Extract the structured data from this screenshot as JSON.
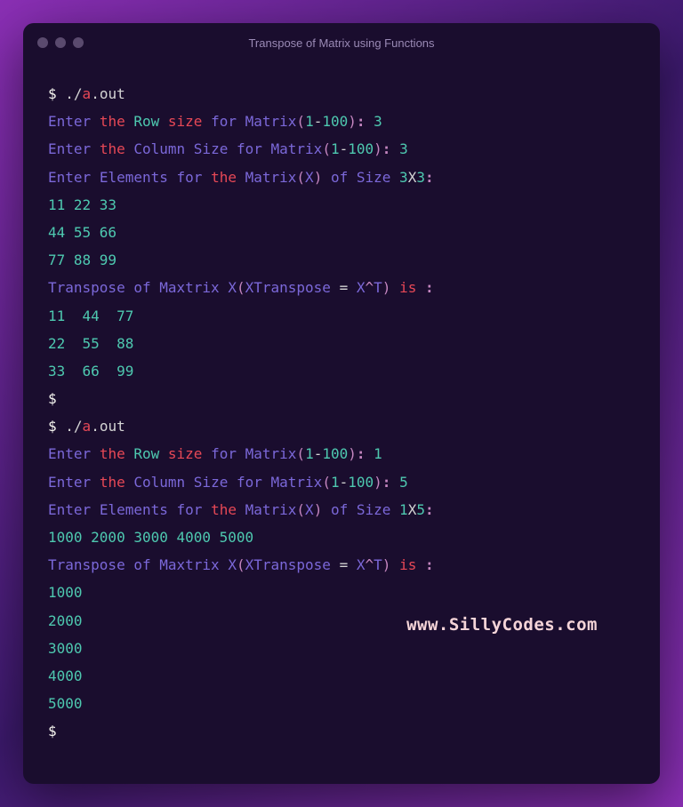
{
  "window": {
    "title": "Transpose of Matrix using Functions",
    "background_gradient": [
      "#8b2fb5",
      "#3d1a6e",
      "#8b2fb5"
    ],
    "terminal_bg": "#1a0d2e",
    "border_radius": 12
  },
  "colors": {
    "prompt": "#f8f8f2",
    "red": "#e74856",
    "purple": "#7b68d9",
    "teal": "#4ec9b0",
    "pink": "#c586c0",
    "gray": "#d4d4d4",
    "title": "#9a8ab5",
    "light": "#5a4a6e",
    "watermark": "#f5d4d8"
  },
  "typography": {
    "font_family": "Menlo, Monaco, Consolas, monospace",
    "font_size": 16,
    "line_height": 1.95,
    "title_font_size": 13
  },
  "run1": {
    "prompt": "$",
    "cmd_prefix": "./",
    "cmd_a": "a",
    "cmd_dot": ".",
    "cmd_out": "out",
    "enter": "Enter",
    "the": "the",
    "row": "Row",
    "size": "size",
    "for": "for",
    "matrix": "Matrix",
    "lparen": "(",
    "range_lo": "1",
    "dash": "-",
    "range_hi": "100",
    "rparen": ")",
    "colon": ":",
    "row_input": "3",
    "column": "Column",
    "size2": "Size",
    "col_input": "3",
    "elements": "Elements",
    "var_x": "X",
    "of": "of",
    "dim_r": "3",
    "x_sep": "X",
    "dim_c": "3",
    "data_r1": "11 22 33",
    "data_r2": "44 55 66",
    "data_r3": "77 88 99",
    "transpose": "Transpose",
    "maxtrix": "Maxtrix",
    "xtranspose": "XTranspose",
    "eq": "=",
    "x_caret": "X",
    "caret": "^",
    "t": "T",
    "is": "is",
    "out_r1": "11  44  77",
    "out_r2": "22  55  88",
    "out_r3": "33  66  99"
  },
  "run2": {
    "row_input": "1",
    "col_input": "5",
    "dim_r": "1",
    "dim_c": "5",
    "data_r1": "1000 2000 3000 4000 5000",
    "out_r1": "1000",
    "out_r2": "2000",
    "out_r3": "3000",
    "out_r4": "4000",
    "out_r5": "5000"
  },
  "watermark": "www.SillyCodes.com"
}
